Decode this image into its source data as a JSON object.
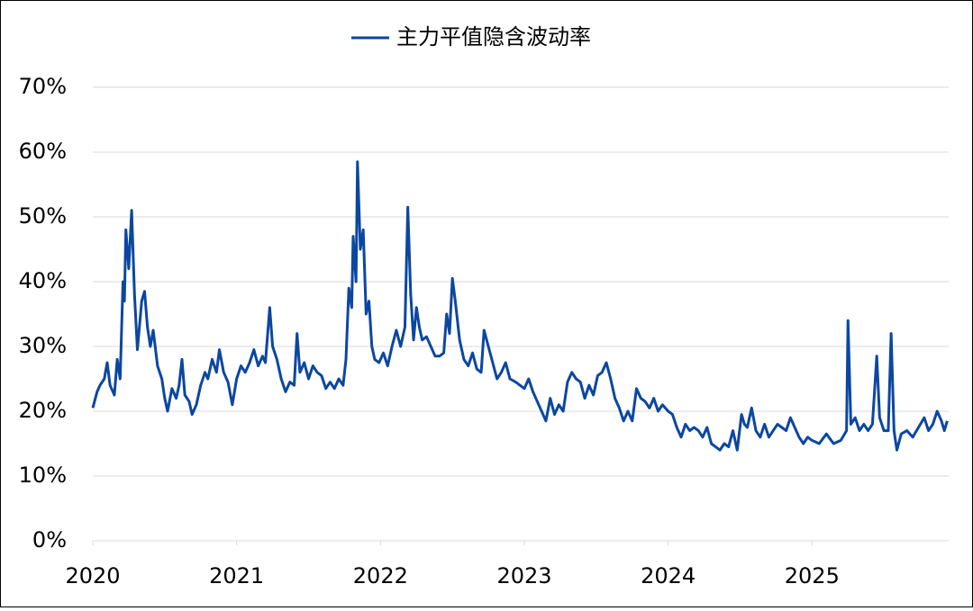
{
  "chart_data": {
    "type": "line",
    "x": [
      2020.0,
      2020.03,
      2020.05,
      2020.08,
      2020.1,
      2020.12,
      2020.15,
      2020.17,
      2020.19,
      2020.21,
      2020.22,
      2020.23,
      2020.25,
      2020.27,
      2020.29,
      2020.31,
      2020.34,
      2020.36,
      2020.38,
      2020.4,
      2020.42,
      2020.45,
      2020.48,
      2020.5,
      2020.52,
      2020.55,
      2020.58,
      2020.6,
      2020.62,
      2020.64,
      2020.67,
      2020.69,
      2020.72,
      2020.75,
      2020.78,
      2020.8,
      2020.83,
      2020.86,
      2020.88,
      2020.91,
      2020.94,
      2020.97,
      2021.0,
      2021.03,
      2021.06,
      2021.09,
      2021.12,
      2021.15,
      2021.18,
      2021.2,
      2021.23,
      2021.25,
      2021.28,
      2021.31,
      2021.34,
      2021.37,
      2021.4,
      2021.42,
      2021.44,
      2021.47,
      2021.5,
      2021.53,
      2021.56,
      2021.59,
      2021.62,
      2021.65,
      2021.68,
      2021.71,
      2021.74,
      2021.76,
      2021.78,
      2021.8,
      2021.81,
      2021.83,
      2021.84,
      2021.86,
      2021.88,
      2021.9,
      2021.92,
      2021.94,
      2021.96,
      2021.99,
      2022.02,
      2022.05,
      2022.08,
      2022.11,
      2022.14,
      2022.17,
      2022.19,
      2022.21,
      2022.23,
      2022.25,
      2022.27,
      2022.29,
      2022.32,
      2022.35,
      2022.38,
      2022.41,
      2022.44,
      2022.46,
      2022.48,
      2022.5,
      2022.52,
      2022.55,
      2022.58,
      2022.61,
      2022.64,
      2022.67,
      2022.7,
      2022.72,
      2022.75,
      2022.78,
      2022.81,
      2022.84,
      2022.87,
      2022.9,
      2022.94,
      2022.97,
      2023.0,
      2023.03,
      2023.06,
      2023.09,
      2023.12,
      2023.15,
      2023.18,
      2023.21,
      2023.24,
      2023.27,
      2023.3,
      2023.33,
      2023.36,
      2023.39,
      2023.42,
      2023.45,
      2023.48,
      2023.51,
      2023.54,
      2023.57,
      2023.6,
      2023.63,
      2023.66,
      2023.69,
      2023.72,
      2023.75,
      2023.78,
      2023.81,
      2023.84,
      2023.87,
      2023.9,
      2023.93,
      2023.96,
      2024.0,
      2024.03,
      2024.06,
      2024.09,
      2024.12,
      2024.15,
      2024.18,
      2024.21,
      2024.24,
      2024.27,
      2024.3,
      2024.33,
      2024.36,
      2024.39,
      2024.42,
      2024.45,
      2024.48,
      2024.51,
      2024.53,
      2024.55,
      2024.58,
      2024.61,
      2024.64,
      2024.67,
      2024.7,
      2024.73,
      2024.76,
      2024.79,
      2024.82,
      2024.85,
      2024.88,
      2024.91,
      2024.94,
      2024.97,
      2025.0,
      2025.05,
      2025.1,
      2025.15,
      2025.2,
      2025.24,
      2025.25,
      2025.27,
      2025.3,
      2025.33,
      2025.36,
      2025.39,
      2025.42,
      2025.45,
      2025.47,
      2025.5,
      2025.53,
      2025.55,
      2025.57,
      2025.59,
      2025.62,
      2025.66,
      2025.7,
      2025.74,
      2025.78,
      2025.81,
      2025.84,
      2025.87,
      2025.9,
      2025.92,
      2025.94
    ],
    "series": [
      {
        "name": "主力平值隐含波动率",
        "color": "#0b47a1",
        "values": [
          20.5,
          23,
          24,
          25,
          27.5,
          24,
          22.5,
          28,
          25,
          40,
          37,
          48,
          42,
          51,
          38,
          29.5,
          37,
          38.5,
          33,
          30,
          32.5,
          27,
          25,
          22,
          20,
          23.5,
          22,
          24,
          28,
          22.5,
          21.5,
          19.5,
          21,
          24,
          26,
          25,
          28,
          26,
          29.5,
          26,
          24.5,
          21,
          25,
          27,
          26,
          27.5,
          29.5,
          27,
          28.5,
          27.5,
          36,
          30,
          28,
          25,
          23,
          24.5,
          24,
          32,
          26,
          27.5,
          25,
          27,
          26,
          25.5,
          23.5,
          24.5,
          23.5,
          25,
          24,
          28,
          39,
          36,
          47,
          40,
          58.5,
          45,
          48,
          35,
          37,
          30,
          28,
          27.5,
          29,
          27,
          30,
          32.5,
          30,
          33,
          51.5,
          38,
          31,
          36,
          33,
          31,
          31.5,
          30,
          28.5,
          28.5,
          29,
          35,
          32,
          40.5,
          37,
          31,
          28,
          27,
          29,
          26.5,
          26,
          32.5,
          30,
          27.5,
          25,
          26,
          27.5,
          25,
          24.5,
          24,
          23.5,
          25,
          23,
          21.5,
          20,
          18.5,
          22,
          19.5,
          21,
          20,
          24.5,
          26,
          25,
          24.5,
          22,
          24,
          22.5,
          25.5,
          26,
          27.5,
          25,
          22,
          20.5,
          18.5,
          20,
          18.5,
          23.5,
          22,
          21.5,
          20.5,
          22,
          20,
          21,
          20,
          19.5,
          17.5,
          16,
          18,
          17,
          17.5,
          17,
          16,
          17.5,
          15,
          14.5,
          14,
          15,
          14.5,
          17,
          14,
          19.5,
          18,
          17.5,
          20.5,
          17,
          16,
          18,
          16,
          17,
          18,
          17.5,
          17,
          19,
          17.5,
          16,
          15,
          16,
          15.5,
          15,
          16.5,
          15,
          15.5,
          17,
          34,
          18,
          19,
          17,
          18,
          17,
          18,
          28.5,
          19,
          17,
          17,
          32,
          17,
          14,
          16.5,
          17,
          16,
          17.5,
          19,
          17,
          18,
          20,
          18.5,
          17,
          18.5
        ]
      }
    ],
    "xlim": [
      2020,
      2025.95
    ],
    "xticks": [
      {
        "value": 2020,
        "label": "2020"
      },
      {
        "value": 2021,
        "label": "2021"
      },
      {
        "value": 2022,
        "label": "2022"
      },
      {
        "value": 2023,
        "label": "2023"
      },
      {
        "value": 2024,
        "label": "2024"
      },
      {
        "value": 2025,
        "label": "2025"
      }
    ],
    "ylim": [
      0,
      70
    ],
    "yticks": [
      {
        "value": 0,
        "label": "0%"
      },
      {
        "value": 10,
        "label": "10%"
      },
      {
        "value": 20,
        "label": "20%"
      },
      {
        "value": 30,
        "label": "30%"
      },
      {
        "value": 40,
        "label": "40%"
      },
      {
        "value": 50,
        "label": "50%"
      },
      {
        "value": 60,
        "label": "60%"
      },
      {
        "value": 70,
        "label": "70%"
      }
    ],
    "grid": true,
    "legend": "top"
  }
}
